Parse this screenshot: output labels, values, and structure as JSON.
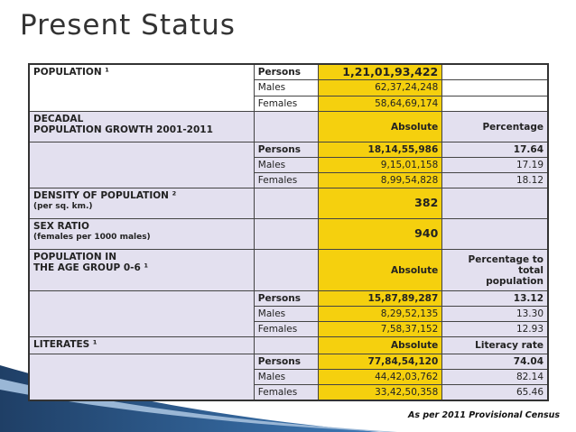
{
  "title": "Present Status",
  "footnote": "As per 2011 Provisional Census",
  "table": {
    "sections": [
      {
        "title": [
          "POPULATION ¹"
        ],
        "rows": [
          [
            "Persons",
            "1,21,01,93,422"
          ],
          [
            "Males",
            "62,37,24,248"
          ],
          [
            "Females",
            "58,64,69,174"
          ]
        ]
      },
      {
        "title": [
          "DECADAL",
          "POPULATION GROWTH 2001-2011"
        ],
        "header": [
          "Absolute",
          "Percentage"
        ],
        "rows": [
          [
            "Persons",
            "18,14,55,986",
            "17.64"
          ],
          [
            "Males",
            "9,15,01,158",
            "17.19"
          ],
          [
            "Females",
            "8,99,54,828",
            "18.12"
          ]
        ]
      },
      {
        "title": [
          "DENSITY OF POPULATION ²"
        ],
        "note": "(per sq. km.)",
        "value": "382"
      },
      {
        "title": [
          "SEX RATIO"
        ],
        "note": "(females per 1000 males)",
        "value": "940"
      },
      {
        "title": [
          "POPULATION IN",
          "THE AGE GROUP 0-6 ¹"
        ],
        "header": [
          "Absolute",
          "Percentage to total population"
        ],
        "rows": [
          [
            "Persons",
            "15,87,89,287",
            "13.12"
          ],
          [
            "Males",
            "8,29,52,135",
            "13.30"
          ],
          [
            "Females",
            "7,58,37,152",
            "12.93"
          ]
        ]
      },
      {
        "title": [
          "LITERATES ¹"
        ],
        "header": [
          "Absolute",
          "Literacy rate"
        ],
        "rows": [
          [
            "Persons",
            "77,84,54,120",
            "74.04"
          ],
          [
            "Males",
            "44,42,03,762",
            "82.14"
          ],
          [
            "Females",
            "33,42,50,358",
            "65.46"
          ]
        ]
      }
    ]
  }
}
